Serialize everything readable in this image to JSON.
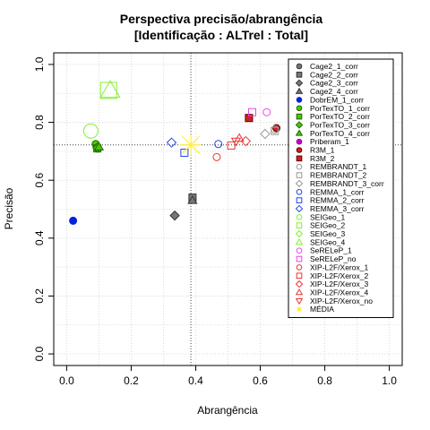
{
  "chart_data": {
    "type": "scatter",
    "title": "Perspectiva precisão/abrangência",
    "subtitle": "[Identificação : ALTrel : Total]",
    "xlabel": "Abrangência",
    "ylabel": "Precisão",
    "xlim": [
      0,
      1
    ],
    "ylim": [
      0,
      1
    ],
    "xticks": [
      "0.0",
      "0.2",
      "0.4",
      "0.6",
      "0.8",
      "1.0"
    ],
    "yticks": [
      "0.0",
      "0.2",
      "0.4",
      "0.6",
      "0.8",
      "1.0"
    ],
    "grid": true,
    "legend_position": "top-right",
    "reference_lines": {
      "x": 0.385,
      "y": 0.722
    },
    "series": [
      {
        "name": "Cage2_1_corr",
        "marker": "circle",
        "fill": "#777777",
        "stroke": "#333333",
        "points": [
          [
            0.39,
            0.535
          ]
        ]
      },
      {
        "name": "Cage2_2_corr",
        "marker": "square",
        "fill": "#777777",
        "stroke": "#333333",
        "points": [
          [
            0.39,
            0.54
          ]
        ]
      },
      {
        "name": "Cage2_3_corr",
        "marker": "diamond",
        "fill": "#777777",
        "stroke": "#333333",
        "points": [
          [
            0.335,
            0.478
          ]
        ]
      },
      {
        "name": "Cage2_4_corr",
        "marker": "triangle",
        "fill": "#777777",
        "stroke": "#333333",
        "points": [
          [
            0.39,
            0.53
          ]
        ]
      },
      {
        "name": "DobrEM_1_corr",
        "marker": "circle",
        "fill": "#0022dd",
        "stroke": "#0022dd",
        "points": [
          [
            0.02,
            0.46
          ]
        ]
      },
      {
        "name": "PorTexTO_1_corr",
        "marker": "circle",
        "fill": "#44cc00",
        "stroke": "#226600",
        "points": [
          [
            0.09,
            0.725
          ]
        ]
      },
      {
        "name": "PorTexTO_2_corr",
        "marker": "square",
        "fill": "#44cc00",
        "stroke": "#226600",
        "points": [
          [
            0.095,
            0.71
          ]
        ]
      },
      {
        "name": "PorTexTO_3_corr",
        "marker": "diamond",
        "fill": "#44cc00",
        "stroke": "#226600",
        "points": [
          [
            0.095,
            0.712
          ]
        ]
      },
      {
        "name": "PorTexTO_4_corr",
        "marker": "triangle",
        "fill": "#44cc00",
        "stroke": "#226600",
        "points": [
          [
            0.1,
            0.715
          ]
        ]
      },
      {
        "name": "Priberam_1",
        "marker": "circle",
        "fill": "#cc00cc",
        "stroke": "#880088",
        "points": []
      },
      {
        "name": "R3M_1",
        "marker": "circle",
        "fill": "#cc2222",
        "stroke": "#660000",
        "points": [
          [
            0.65,
            0.78
          ]
        ]
      },
      {
        "name": "R3M_2",
        "marker": "square",
        "fill": "#cc2222",
        "stroke": "#660000",
        "points": [
          [
            0.565,
            0.815
          ]
        ]
      },
      {
        "name": "REMBRANDT_1",
        "marker": "open-circle",
        "fill": "none",
        "stroke": "#999999",
        "points": [
          [
            0.645,
            0.775
          ]
        ]
      },
      {
        "name": "REMBRANDT_2",
        "marker": "open-square",
        "fill": "none",
        "stroke": "#999999",
        "points": [
          [
            0.645,
            0.77
          ]
        ]
      },
      {
        "name": "REMBRANDT_3_corr",
        "marker": "open-diamond",
        "fill": "none",
        "stroke": "#999999",
        "points": [
          [
            0.615,
            0.76
          ]
        ]
      },
      {
        "name": "REMMA_1_corr",
        "marker": "open-circle",
        "fill": "none",
        "stroke": "#2244ee",
        "points": [
          [
            0.47,
            0.725
          ]
        ]
      },
      {
        "name": "REMMA_2_corr",
        "marker": "open-square",
        "fill": "none",
        "stroke": "#2244ee",
        "points": [
          [
            0.365,
            0.695
          ]
        ]
      },
      {
        "name": "REMMA_3_corr",
        "marker": "open-diamond",
        "fill": "none",
        "stroke": "#2244ee",
        "points": [
          [
            0.325,
            0.73
          ]
        ]
      },
      {
        "name": "SEIGeo_1",
        "marker": "open-circle",
        "fill": "none",
        "stroke": "#88ee33",
        "points": [
          [
            0.075,
            0.77
          ]
        ]
      },
      {
        "name": "SEIGeo_2",
        "marker": "open-square",
        "fill": "none",
        "stroke": "#88ee33",
        "points": [
          [
            0.13,
            0.91
          ]
        ]
      },
      {
        "name": "SEIGeo_3",
        "marker": "open-diamond",
        "fill": "none",
        "stroke": "#88ee33",
        "points": []
      },
      {
        "name": "SEIGeo_4",
        "marker": "open-triangle",
        "fill": "none",
        "stroke": "#88ee33",
        "points": [
          [
            0.135,
            0.91
          ]
        ]
      },
      {
        "name": "SeRELeP_1",
        "marker": "open-circle",
        "fill": "none",
        "stroke": "#ee44ee",
        "points": [
          [
            0.62,
            0.835
          ]
        ]
      },
      {
        "name": "SeRELeP_no",
        "marker": "open-square",
        "fill": "none",
        "stroke": "#ee44ee",
        "points": [
          [
            0.575,
            0.835
          ]
        ]
      },
      {
        "name": "XIP-L2F/Xerox_1",
        "marker": "open-circle",
        "fill": "none",
        "stroke": "#ee3333",
        "points": [
          [
            0.465,
            0.68
          ]
        ]
      },
      {
        "name": "XIP-L2F/Xerox_2",
        "marker": "open-square",
        "fill": "none",
        "stroke": "#ee3333",
        "points": [
          [
            0.51,
            0.72
          ]
        ]
      },
      {
        "name": "XIP-L2F/Xerox_3",
        "marker": "open-diamond",
        "fill": "none",
        "stroke": "#ee3333",
        "points": [
          [
            0.555,
            0.735
          ]
        ]
      },
      {
        "name": "XIP-L2F/Xerox_4",
        "marker": "open-triangle",
        "fill": "none",
        "stroke": "#ee3333",
        "points": [
          [
            0.535,
            0.745
          ]
        ]
      },
      {
        "name": "XIP-L2F/Xerox_no",
        "marker": "open-down-triangle",
        "fill": "none",
        "stroke": "#ee3333",
        "points": [
          [
            0.525,
            0.735
          ]
        ]
      },
      {
        "name": "MÉDIA",
        "marker": "star",
        "fill": "none",
        "stroke": "#ffee44",
        "points": [
          [
            0.385,
            0.722
          ]
        ]
      }
    ]
  }
}
